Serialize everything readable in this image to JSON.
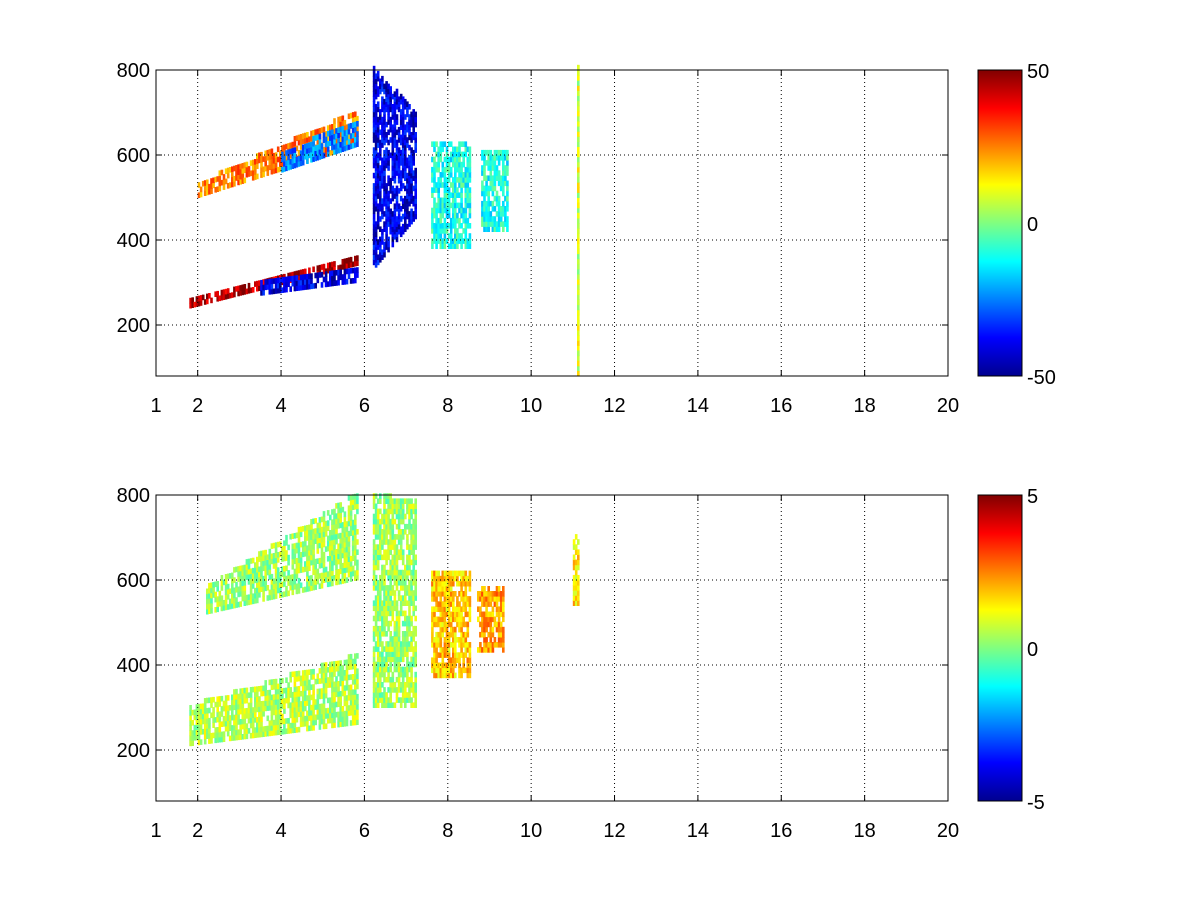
{
  "chart_data": [
    {
      "type": "heatmap",
      "title": "",
      "xlabel": "",
      "ylabel": "",
      "xlim": [
        1,
        20
      ],
      "ylim": [
        80,
        800
      ],
      "xticks": [
        1,
        2,
        4,
        6,
        8,
        10,
        12,
        14,
        16,
        18,
        20
      ],
      "yticks": [
        200,
        400,
        600,
        800
      ],
      "grid": true,
      "colormap": "jet",
      "clim": [
        -50,
        50
      ],
      "colorbar_ticks": [
        -50,
        0,
        50
      ],
      "xtick_labels": [
        "1",
        "2",
        "4",
        "6",
        "8",
        "10",
        "12",
        "14",
        "16",
        "18",
        "20"
      ],
      "ytick_labels": [
        "200",
        "400",
        "600",
        "800"
      ],
      "colorbar_labels": [
        "50",
        "0",
        "-50"
      ],
      "features": [
        {
          "description_value": "positive band",
          "x": [
            1.8,
            5.8
          ],
          "y_start": [
            240,
            340
          ],
          "y_end": [
            260,
            360
          ],
          "value": 45
        },
        {
          "description_value": "negative band",
          "x": [
            3.5,
            5.8
          ],
          "y_start": [
            270,
            300
          ],
          "y_end": [
            300,
            330
          ],
          "value": -40
        },
        {
          "description_value": "positive band",
          "x": [
            2,
            5.8
          ],
          "y_start": [
            500,
            620
          ],
          "y_end": [
            530,
            700
          ],
          "value": 25
        },
        {
          "description_value": "negative band",
          "x": [
            4,
            5.8
          ],
          "y_start": [
            560,
            620
          ],
          "y_end": [
            600,
            680
          ],
          "value": -25
        },
        {
          "description_value": "negative cluster",
          "x": [
            6.2,
            7.2
          ],
          "y_start": [
            330,
            450
          ],
          "y_end": [
            800,
            700
          ],
          "value": -40
        },
        {
          "description_value": "mixed cluster",
          "x": [
            7.6,
            8.5
          ],
          "y_start": [
            380,
            380
          ],
          "y_end": [
            620,
            620
          ],
          "value": -10
        },
        {
          "description_value": "mixed cluster",
          "x": [
            8.8,
            9.4
          ],
          "y_start": [
            420,
            420
          ],
          "y_end": [
            600,
            600
          ],
          "value": -10
        },
        {
          "description_value": "vertical stripe",
          "x": [
            11.1,
            11.1
          ],
          "y_start": [
            80,
            80
          ],
          "y_end": [
            800,
            800
          ],
          "value": 8
        }
      ]
    },
    {
      "type": "heatmap",
      "title": "",
      "xlabel": "",
      "ylabel": "",
      "xlim": [
        1,
        20
      ],
      "ylim": [
        80,
        800
      ],
      "xticks": [
        1,
        2,
        4,
        6,
        8,
        10,
        12,
        14,
        16,
        18,
        20
      ],
      "yticks": [
        200,
        400,
        600,
        800
      ],
      "grid": true,
      "colormap": "jet",
      "clim": [
        -5,
        5
      ],
      "colorbar_ticks": [
        -5,
        0,
        5
      ],
      "xtick_labels": [
        "1",
        "2",
        "4",
        "6",
        "8",
        "10",
        "12",
        "14",
        "16",
        "18",
        "20"
      ],
      "ytick_labels": [
        "200",
        "400",
        "600",
        "800"
      ],
      "colorbar_labels": [
        "5",
        "0",
        "-5"
      ],
      "features": [
        {
          "description_value": "lower band",
          "x": [
            1.8,
            5.8
          ],
          "y_start": [
            210,
            260
          ],
          "y_end": [
            300,
            420
          ],
          "value": 0.5
        },
        {
          "description_value": "upper band",
          "x": [
            2.2,
            5.8
          ],
          "y_start": [
            520,
            600
          ],
          "y_end": [
            580,
            800
          ],
          "value": 0.3
        },
        {
          "description_value": "cluster",
          "x": [
            6.2,
            7.2
          ],
          "y_start": [
            300,
            300
          ],
          "y_end": [
            800,
            780
          ],
          "value": 0.3
        },
        {
          "description_value": "cluster",
          "x": [
            7.6,
            8.5
          ],
          "y_start": [
            370,
            370
          ],
          "y_end": [
            620,
            620
          ],
          "value": 1.8
        },
        {
          "description_value": "cluster",
          "x": [
            8.7,
            9.3
          ],
          "y_start": [
            430,
            430
          ],
          "y_end": [
            580,
            580
          ],
          "value": 2.2
        },
        {
          "description_value": "streak",
          "x": [
            11.0,
            11.1
          ],
          "y_start": [
            540,
            540
          ],
          "y_end": [
            700,
            700
          ],
          "value": 1.5
        }
      ]
    }
  ]
}
